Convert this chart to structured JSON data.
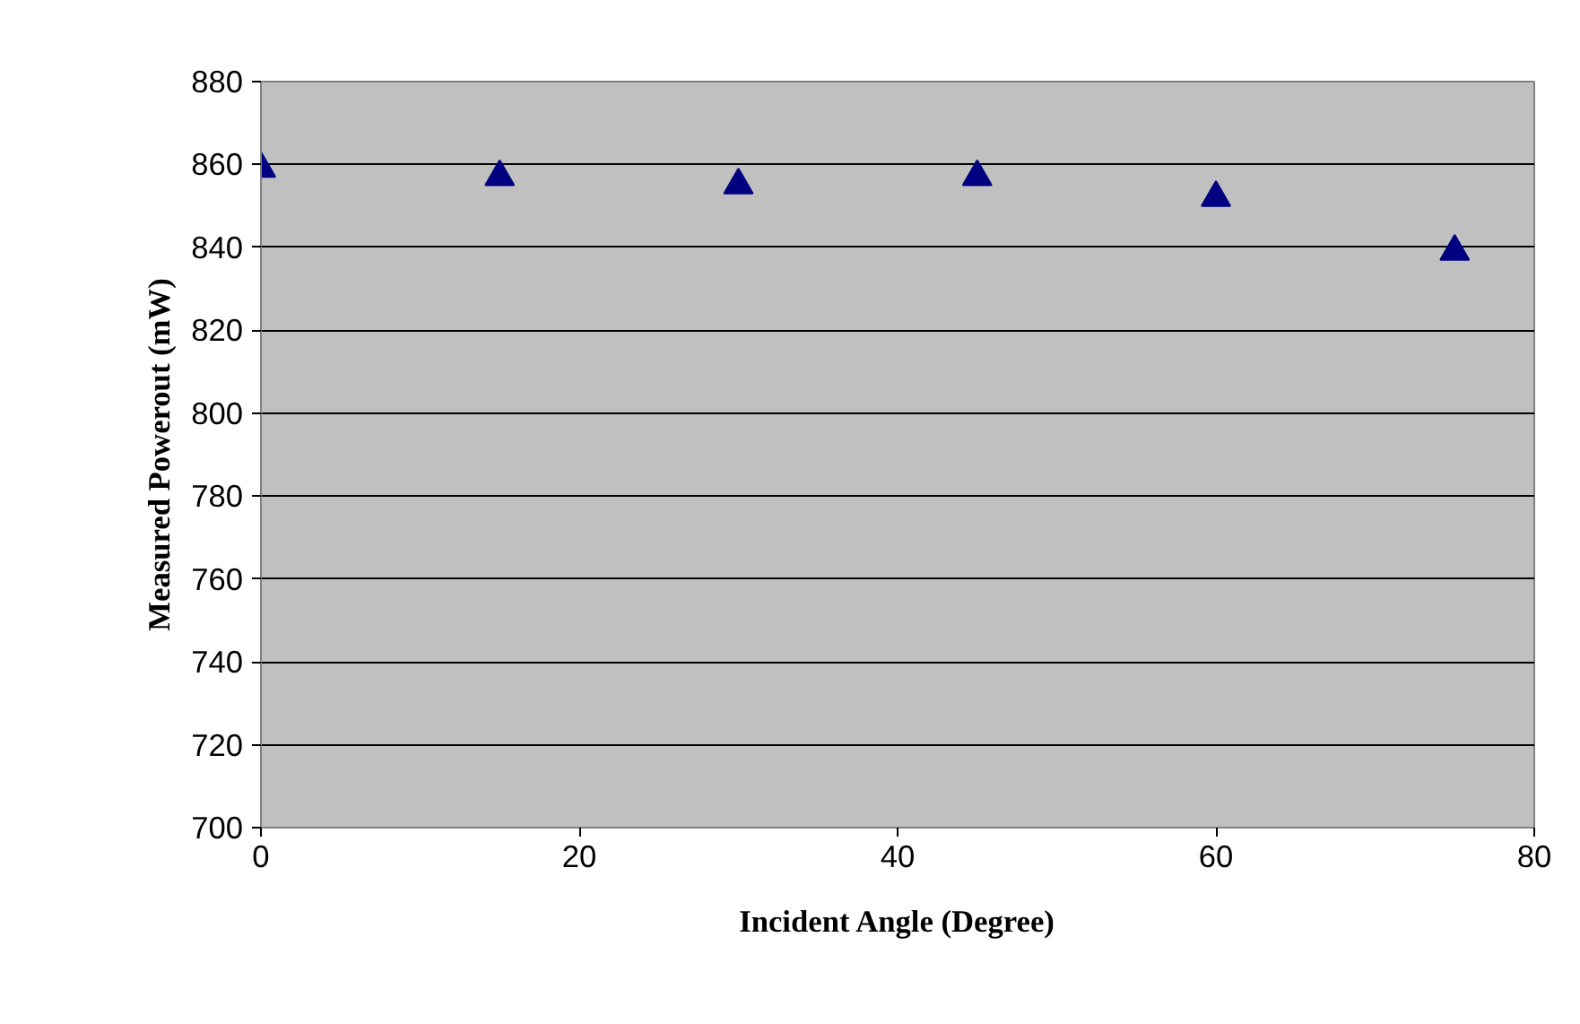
{
  "chart_data": {
    "type": "scatter",
    "xlabel": "Incident Angle (Degree)",
    "ylabel": "Measured Powerout (mW)",
    "x": [
      0,
      15,
      30,
      45,
      60,
      75
    ],
    "series": [
      {
        "color": "#000080",
        "values": [
          859,
          857,
          855,
          857,
          852,
          839
        ]
      }
    ],
    "xlim": [
      0,
      80
    ],
    "xticks": [
      0,
      20,
      40,
      60,
      80
    ],
    "ylim": [
      700,
      880
    ],
    "yticks": [
      700,
      720,
      740,
      760,
      780,
      800,
      820,
      840,
      860,
      880
    ],
    "grid": "y",
    "marker": "triangle"
  }
}
